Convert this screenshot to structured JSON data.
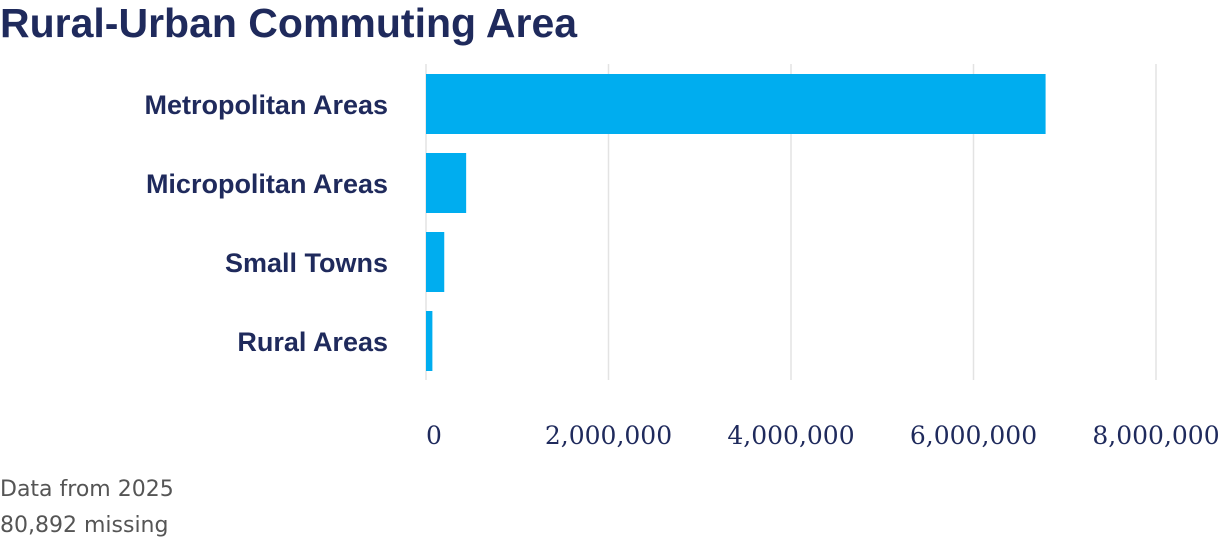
{
  "title": "Rural-Urban Commuting Area",
  "notes": {
    "year": "Data from 2025",
    "missing": "80,892 missing"
  },
  "colors": {
    "bar": "#00adef",
    "text": "#1f2a5c",
    "grid": "#e3e3e3"
  },
  "chart_data": {
    "type": "bar",
    "orientation": "horizontal",
    "categories": [
      "Metropolitan Areas",
      "Micropolitan Areas",
      "Small Towns",
      "Rural Areas"
    ],
    "values": [
      6790000,
      440000,
      200000,
      70000
    ],
    "xlim": [
      0,
      8000000
    ],
    "xticks": [
      0,
      2000000,
      4000000,
      6000000,
      8000000
    ],
    "xtick_labels": [
      "0",
      "2,000,000",
      "4,000,000",
      "6,000,000",
      "8,000,000"
    ],
    "grid": true
  }
}
